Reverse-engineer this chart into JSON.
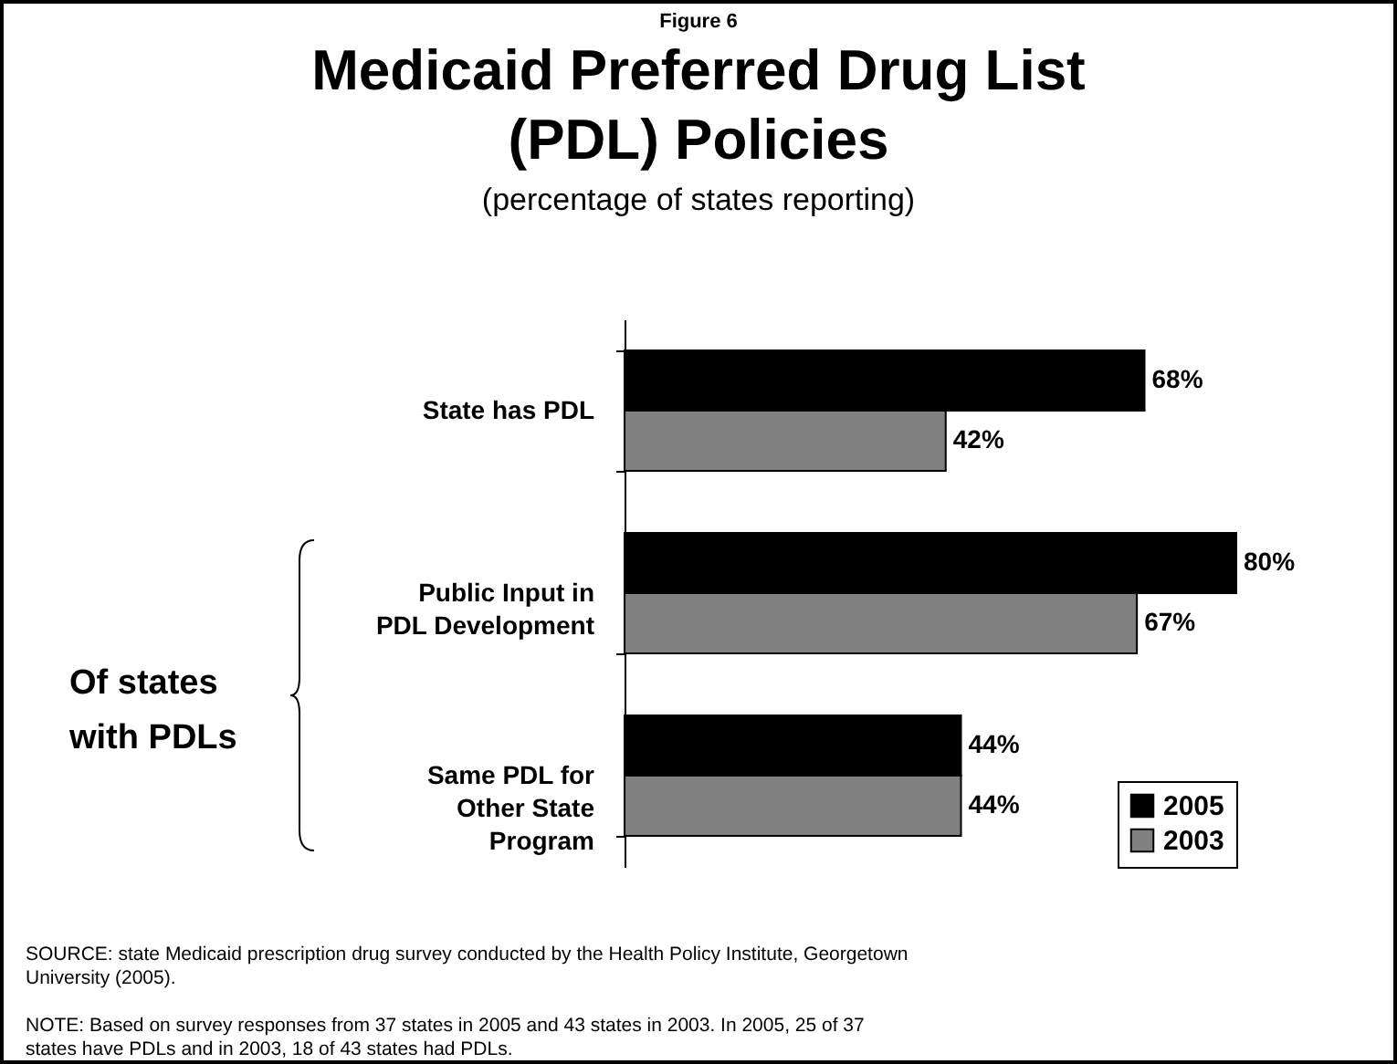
{
  "chart_data": {
    "type": "bar",
    "orientation": "horizontal",
    "title": "Medicaid Preferred Drug List (PDL) Policies",
    "subtitle": "(percentage of states reporting)",
    "categories": [
      "State has PDL",
      "Public Input in PDL Development",
      "Same PDL for Other State Program"
    ],
    "series": [
      {
        "name": "2005",
        "color": "#000000",
        "values": [
          68,
          80,
          44
        ],
        "value_labels": [
          "68%",
          "80%",
          "44%"
        ]
      },
      {
        "name": "2003",
        "color": "#808080",
        "values": [
          42,
          67,
          44
        ],
        "value_labels": [
          "42%",
          "67%",
          "44%"
        ]
      }
    ],
    "legend": "bottom right",
    "grid": false,
    "annotations": [
      "Figure 6",
      "Of states with PDLs",
      "SOURCE: state Medicaid prescription drug survey conducted by the Health Policy Institute, Georgetown University (2005).",
      "NOTE: Based on survey responses from 37 states in 2005 and 43 states in 2003. In 2005, 25 of 37 states have PDLs and in 2003, 18 of 43 states had PDLs."
    ]
  }
}
